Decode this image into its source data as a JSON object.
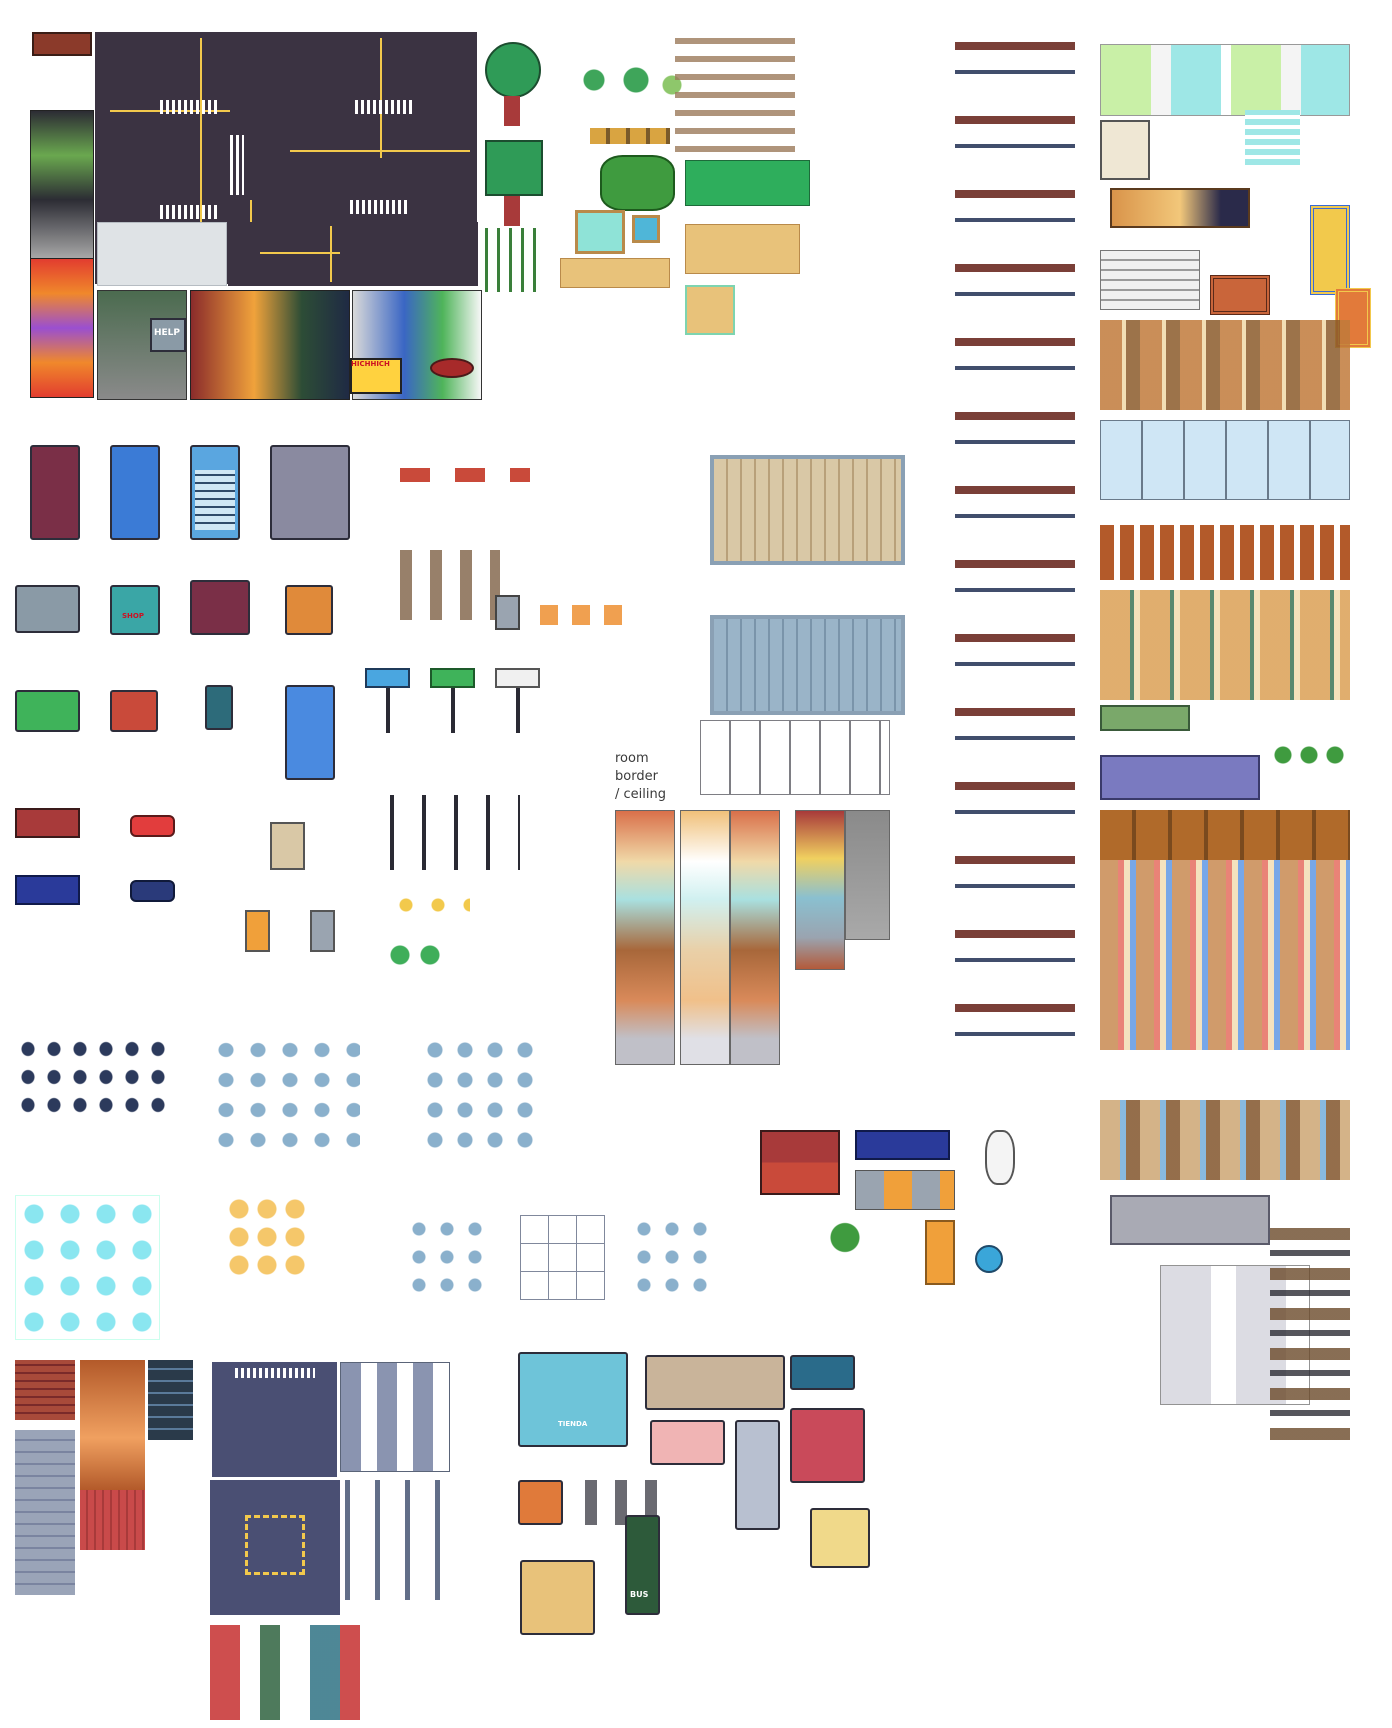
{
  "sheet": {
    "title": "",
    "annotation_label": "room border\n/ ceiling",
    "signs": {
      "help": "HELP",
      "shop": "SHOP",
      "bus": "BUS",
      "tienda": "TIENDA",
      "hichhich": "HICHHICH"
    }
  },
  "colors": {
    "asphalt": "#3b3342",
    "road_line": "#f2c94c",
    "grass": "#3fae5a",
    "water": "#8fe3d7",
    "sand": "#e8c27a",
    "wood": "#a85a2e",
    "floor_light": "#d9c8a6",
    "glass": "#9fd3f0",
    "building_blue": "#3b7bd6",
    "building_maroon": "#7a2f47"
  }
}
